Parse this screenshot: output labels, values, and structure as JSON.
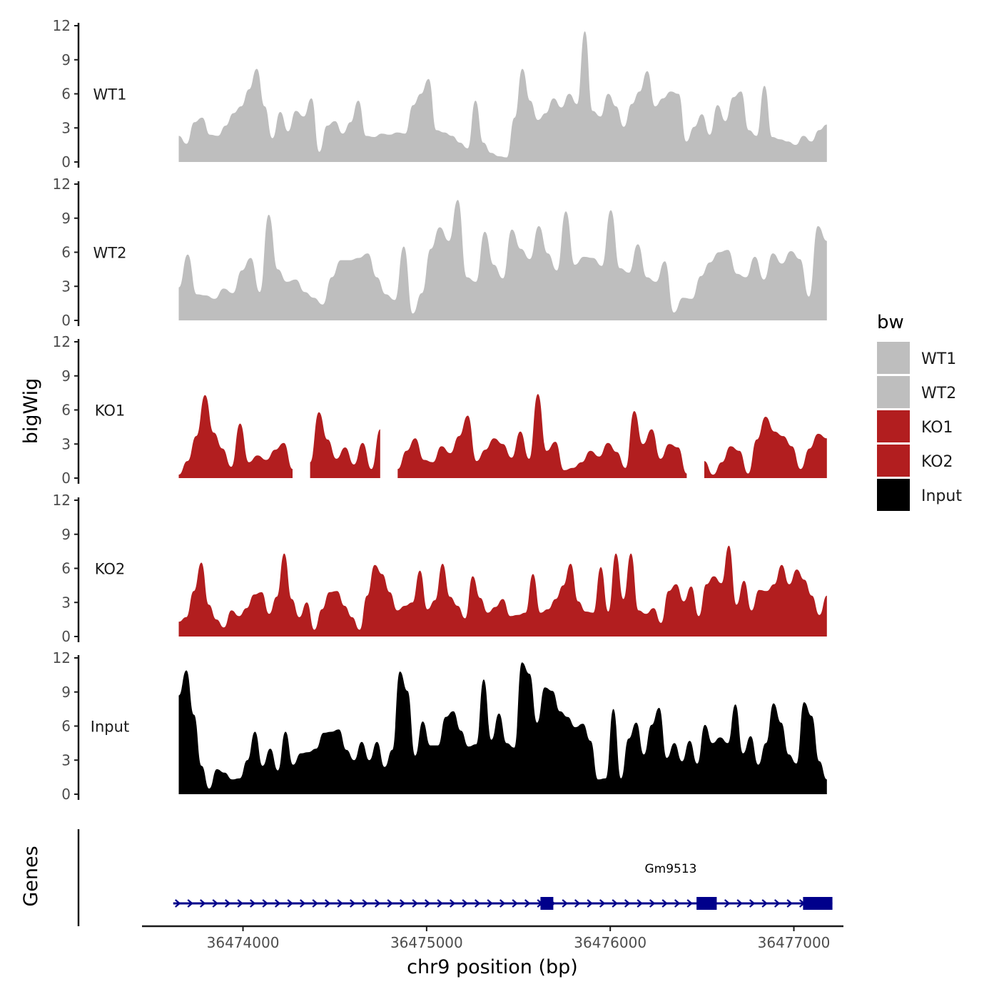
{
  "chart_data": {
    "type": "area",
    "title": "",
    "xlabel": "chr9 position (bp)",
    "ylabel": "bigWig",
    "genes_label": "Genes",
    "xlim": [
      36473450,
      36477270
    ],
    "ylim": [
      0,
      12
    ],
    "x_ticks": [
      36474000,
      36475000,
      36476000,
      36477000
    ],
    "y_ticks": [
      0,
      3,
      6,
      9,
      12
    ],
    "x_start": 36473650,
    "x_end": 36477180,
    "legend": {
      "title": "bw",
      "entries": [
        {
          "name": "WT1",
          "color": "#bebebe"
        },
        {
          "name": "WT2",
          "color": "#bebebe"
        },
        {
          "name": "KO1",
          "color": "#b21e1f"
        },
        {
          "name": "KO2",
          "color": "#b21e1f"
        },
        {
          "name": "Input",
          "color": "#000000"
        }
      ]
    },
    "series": [
      {
        "name": "WT1",
        "color": "#bebebe",
        "values": [
          2.3,
          1.6,
          3.5,
          3.9,
          2.4,
          2.3,
          3.2,
          4.3,
          4.9,
          6.4,
          8.2,
          4.9,
          2.1,
          4.4,
          2.7,
          4.5,
          4.0,
          5.6,
          0.9,
          3.2,
          3.6,
          2.5,
          3.5,
          5.4,
          2.3,
          2.2,
          2.5,
          2.4,
          2.6,
          2.5,
          5.0,
          6.0,
          7.3,
          2.8,
          2.6,
          2.3,
          1.7,
          1.2,
          5.4,
          1.7,
          0.8,
          0.5,
          0.4,
          3.9,
          8.2,
          5.4,
          3.7,
          4.3,
          5.6,
          4.8,
          6.0,
          5.1,
          11.5,
          4.5,
          4.0,
          6.0,
          4.9,
          3.1,
          5.1,
          6.2,
          8.0,
          4.9,
          5.6,
          6.2,
          6.0,
          1.8,
          3.1,
          4.2,
          2.4,
          5.0,
          3.6,
          5.7,
          6.2,
          2.8,
          2.3,
          6.7,
          2.2,
          2.0,
          1.8,
          1.5,
          2.3,
          1.8,
          2.8,
          3.3
        ]
      },
      {
        "name": "WT2",
        "color": "#bebebe",
        "values": [
          2.9,
          5.8,
          2.3,
          2.2,
          1.9,
          2.8,
          2.4,
          4.4,
          5.5,
          2.5,
          9.3,
          4.5,
          3.4,
          3.6,
          2.5,
          2.0,
          1.4,
          3.8,
          5.3,
          5.3,
          5.5,
          5.9,
          3.8,
          2.3,
          1.8,
          6.5,
          0.6,
          2.4,
          6.3,
          8.2,
          7.0,
          10.6,
          3.8,
          3.4,
          7.8,
          4.9,
          3.7,
          8.0,
          6.3,
          5.4,
          8.3,
          5.9,
          4.4,
          9.6,
          4.9,
          5.6,
          5.5,
          4.8,
          9.7,
          4.6,
          4.2,
          6.7,
          3.8,
          3.4,
          5.2,
          0.7,
          2.0,
          1.9,
          3.9,
          5.1,
          6.0,
          6.2,
          4.1,
          3.8,
          5.6,
          3.6,
          5.9,
          5.0,
          6.1,
          5.4,
          2.1,
          8.3,
          7.0
        ]
      },
      {
        "name": "KO1",
        "color": "#b21e1f",
        "values": [
          0.3,
          1.5,
          3.7,
          7.3,
          4.0,
          2.6,
          1.0,
          4.8,
          1.4,
          2.0,
          1.6,
          2.5,
          3.1,
          0.8,
          null,
          1.4,
          5.8,
          3.4,
          1.7,
          2.7,
          1.2,
          3.1,
          0.8,
          4.3,
          null,
          0.8,
          2.4,
          3.5,
          1.6,
          1.4,
          2.8,
          2.2,
          3.7,
          5.5,
          1.5,
          2.5,
          3.5,
          3.0,
          1.8,
          4.1,
          1.7,
          7.4,
          2.4,
          3.2,
          0.7,
          0.9,
          1.4,
          2.4,
          1.9,
          3.1,
          2.3,
          0.9,
          5.9,
          3.0,
          4.3,
          1.7,
          3.0,
          2.7,
          0.4,
          null,
          1.5,
          0.3,
          1.4,
          2.8,
          2.4,
          0.4,
          3.4,
          5.4,
          4.1,
          3.7,
          2.8,
          0.8,
          2.6,
          3.9,
          3.5
        ]
      },
      {
        "name": "KO2",
        "color": "#b21e1f",
        "values": [
          1.3,
          1.7,
          4.0,
          6.5,
          2.8,
          1.5,
          0.8,
          2.3,
          1.8,
          2.5,
          3.7,
          3.9,
          2.0,
          3.5,
          7.3,
          3.3,
          1.7,
          3.0,
          0.6,
          2.4,
          3.9,
          4.0,
          2.7,
          1.7,
          0.6,
          3.6,
          6.3,
          5.5,
          3.9,
          2.3,
          2.7,
          3.0,
          5.8,
          2.4,
          3.2,
          6.4,
          3.5,
          2.7,
          1.6,
          5.3,
          3.4,
          2.1,
          2.6,
          3.3,
          1.8,
          1.9,
          2.1,
          5.5,
          2.1,
          2.4,
          3.3,
          4.5,
          6.4,
          3.1,
          2.2,
          2.1,
          6.1,
          2.2,
          7.3,
          3.3,
          7.3,
          2.3,
          2.0,
          2.5,
          1.2,
          4.0,
          4.6,
          3.1,
          4.4,
          1.8,
          4.6,
          5.3,
          4.7,
          8.0,
          2.8,
          4.9,
          2.3,
          4.1,
          4.0,
          4.6,
          6.3,
          4.6,
          5.9,
          5.0,
          3.6,
          1.9,
          3.6
        ]
      },
      {
        "name": "Input",
        "color": "#000000",
        "values": [
          8.7,
          10.9,
          7.0,
          2.5,
          0.5,
          2.2,
          1.9,
          1.3,
          1.4,
          3.0,
          5.5,
          2.5,
          4.0,
          2.1,
          5.5,
          2.6,
          3.6,
          3.7,
          4.0,
          5.4,
          5.5,
          5.7,
          3.9,
          3.0,
          4.6,
          3.0,
          4.6,
          2.4,
          3.9,
          10.8,
          9.1,
          3.4,
          6.4,
          4.3,
          4.3,
          6.8,
          7.3,
          5.6,
          4.2,
          4.4,
          10.1,
          4.8,
          7.1,
          4.5,
          4.1,
          11.6,
          10.6,
          6.3,
          9.4,
          9.1,
          7.3,
          6.8,
          5.9,
          6.2,
          4.7,
          1.3,
          1.4,
          7.5,
          1.4,
          4.9,
          6.3,
          3.5,
          6.1,
          7.6,
          3.2,
          4.5,
          2.9,
          4.7,
          2.7,
          6.1,
          4.5,
          5.0,
          4.5,
          7.9,
          3.6,
          5.1,
          2.6,
          4.5,
          8.0,
          6.3,
          3.5,
          2.7,
          8.1,
          6.9,
          2.9,
          1.3
        ]
      }
    ],
    "genes": [
      {
        "name": "Gm9513",
        "strand": "+",
        "start": 36473620,
        "end": 36477210,
        "color": "#00008b",
        "exons": [
          [
            36475620,
            36475690
          ],
          [
            36476470,
            36476580
          ],
          [
            36477050,
            36477210
          ]
        ]
      }
    ]
  }
}
